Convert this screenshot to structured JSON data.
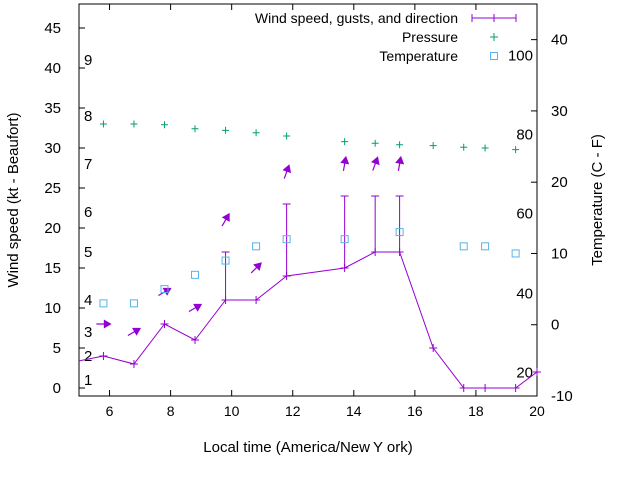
{
  "chart_data": {
    "type": "line",
    "xlabel": "Local time (America/New Y ork)",
    "ylabel": "Wind speed (kt - Beaufort)",
    "y2label": "Temperature (C - F)",
    "xlim": [
      5,
      20
    ],
    "ylim": [
      -1,
      48
    ],
    "y2lim": [
      -10,
      45
    ],
    "x_ticks": [
      6,
      8,
      10,
      12,
      14,
      16,
      18,
      20
    ],
    "y_ticks": [
      0,
      5,
      10,
      15,
      20,
      25,
      30,
      35,
      40,
      45
    ],
    "y2_ticks": [
      -10,
      0,
      10,
      20,
      30,
      40
    ],
    "beaufort_labels": [
      {
        "label": "1",
        "y": 1
      },
      {
        "label": "2",
        "y": 4
      },
      {
        "label": "3",
        "y": 7
      },
      {
        "label": "4",
        "y": 11
      },
      {
        "label": "5",
        "y": 17
      },
      {
        "label": "6",
        "y": 22
      },
      {
        "label": "7",
        "y": 28
      },
      {
        "label": "8",
        "y": 34
      },
      {
        "label": "9",
        "y": 41
      }
    ],
    "fahrenheit_labels": [
      {
        "label": "20",
        "y2": -6.7
      },
      {
        "label": "40",
        "y2": 4.4
      },
      {
        "label": "60",
        "y2": 15.6
      },
      {
        "label": "80",
        "y2": 26.7
      },
      {
        "label": "100",
        "y2": 37.8
      }
    ],
    "legend": {
      "position": "top-right",
      "entries": [
        "Wind speed, gusts, and direction",
        "Pressure",
        "Temperature"
      ]
    },
    "colors": {
      "wind": "#9400d3",
      "pressure": "#009e73",
      "temperature": "#56b4e9"
    },
    "series": [
      {
        "name": "Wind speed, gusts, and direction",
        "x": [
          4.5,
          5.8,
          6.8,
          7.8,
          8.8,
          9.8,
          10.8,
          11.8,
          13.7,
          14.7,
          15.5,
          16.6,
          17.6,
          18.3,
          19.3,
          20
        ],
        "y": [
          3,
          4,
          3,
          8,
          6,
          11,
          11,
          14,
          15,
          17,
          17,
          5,
          0,
          0,
          0,
          2
        ]
      },
      {
        "name": "Gusts",
        "x": [
          9.8,
          11.8,
          13.7,
          14.7,
          15.5
        ],
        "y": [
          17,
          23,
          24,
          24,
          24
        ]
      },
      {
        "name": "Direction arrows",
        "points": [
          {
            "x": 5.8,
            "y": 8,
            "dir_deg": 270
          },
          {
            "x": 6.8,
            "y": 7,
            "dir_deg": 240
          },
          {
            "x": 7.8,
            "y": 12,
            "dir_deg": 240
          },
          {
            "x": 8.8,
            "y": 10,
            "dir_deg": 240
          },
          {
            "x": 9.8,
            "y": 21,
            "dir_deg": 210
          },
          {
            "x": 10.8,
            "y": 15,
            "dir_deg": 225
          },
          {
            "x": 11.8,
            "y": 27,
            "dir_deg": 200
          },
          {
            "x": 13.7,
            "y": 28,
            "dir_deg": 190
          },
          {
            "x": 14.7,
            "y": 28,
            "dir_deg": 200
          },
          {
            "x": 15.5,
            "y": 28,
            "dir_deg": 190
          }
        ]
      },
      {
        "name": "Pressure",
        "x": [
          5.8,
          6.8,
          7.8,
          8.8,
          9.8,
          10.8,
          11.8,
          13.7,
          14.7,
          15.5,
          16.6,
          17.6,
          18.3,
          19.3
        ],
        "y": [
          33,
          33,
          32.9,
          32.4,
          32.2,
          31.9,
          31.5,
          30.8,
          30.6,
          30.4,
          30.3,
          30.1,
          30,
          29.8
        ]
      },
      {
        "name": "Temperature",
        "x": [
          5.8,
          6.8,
          7.8,
          8.8,
          9.8,
          10.8,
          11.8,
          13.7,
          15.5,
          17.6,
          18.3,
          19.3
        ],
        "y2": [
          3,
          3,
          5,
          7,
          9,
          11,
          12,
          12,
          13,
          11,
          11,
          10
        ]
      }
    ]
  }
}
